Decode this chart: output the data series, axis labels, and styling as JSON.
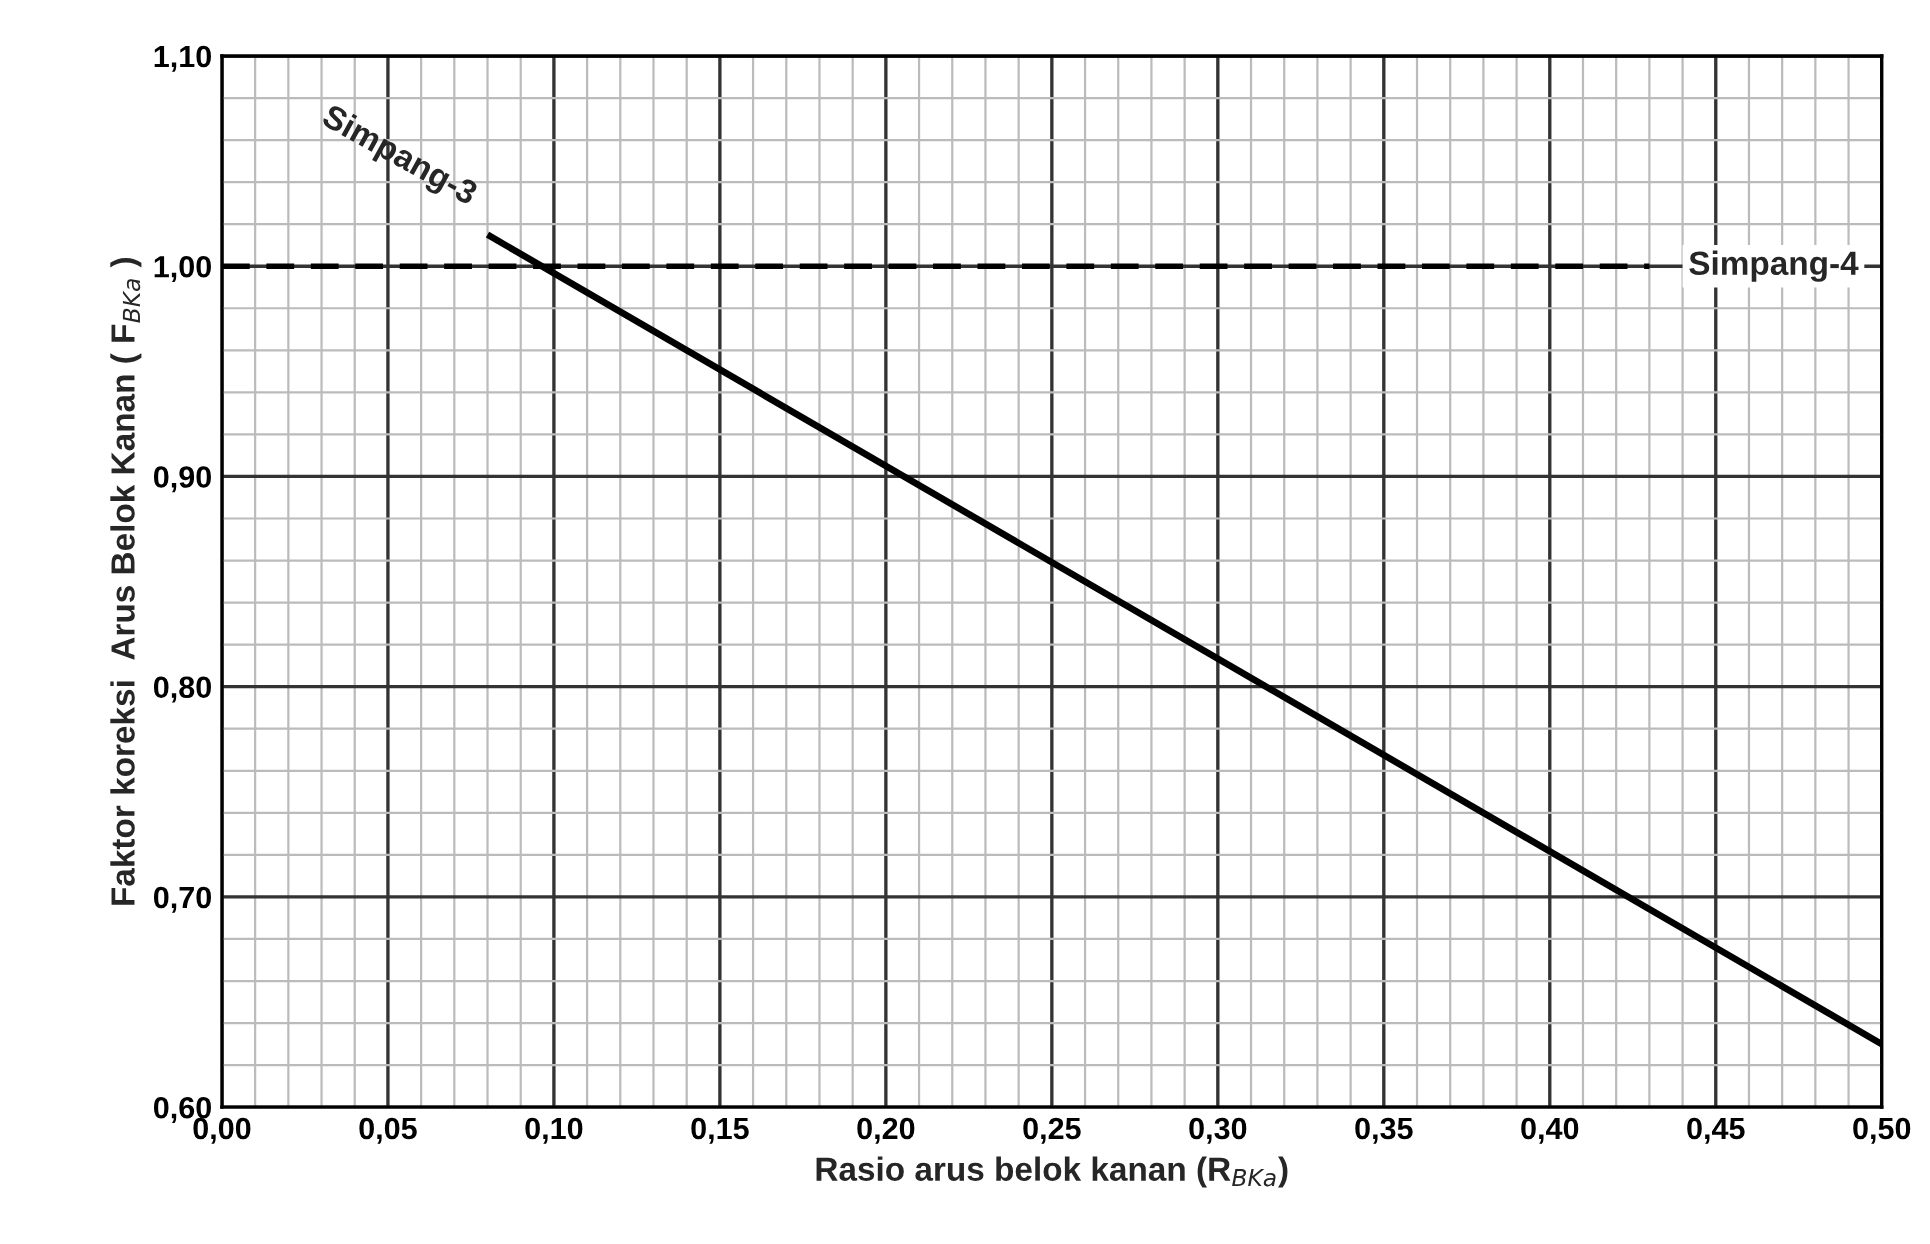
{
  "chart_data": {
    "type": "line",
    "xlabel": "Rasio arus belok kanan (R$_{BKa}$)",
    "ylabel": "Faktor koreksi  Arus Belok Kanan ( F$_{BKa}$ )",
    "series": [
      {
        "name": "Simpang-3",
        "color": "#000000",
        "x": [
          0.08,
          0.5
        ],
        "values": [
          1.015,
          0.63
        ],
        "line_style": "solid"
      },
      {
        "name": "Simpang-4",
        "color": "#000000",
        "x": [
          0.0,
          0.43
        ],
        "values": [
          1.0,
          1.0
        ],
        "line_style": "dashed"
      }
    ],
    "xlim": [
      0,
      0.5
    ],
    "ylim": [
      0.6,
      1.1
    ],
    "xticks": [
      {
        "value": 0,
        "label": "0,00"
      },
      {
        "value": 0.01,
        "label": null
      },
      {
        "value": 0.02,
        "label": null
      },
      {
        "value": 0.03,
        "label": null
      },
      {
        "value": 0.04,
        "label": null
      },
      {
        "value": 0.05,
        "label": "0,05"
      },
      {
        "value": 0.06,
        "label": null
      },
      {
        "value": 0.07,
        "label": null
      },
      {
        "value": 0.08,
        "label": null
      },
      {
        "value": 0.09,
        "label": null
      },
      {
        "value": 0.1,
        "label": "0,10"
      },
      {
        "value": 0.11,
        "label": null
      },
      {
        "value": 0.12,
        "label": null
      },
      {
        "value": 0.13,
        "label": null
      },
      {
        "value": 0.14,
        "label": null
      },
      {
        "value": 0.15,
        "label": "0,15"
      },
      {
        "value": 0.16,
        "label": null
      },
      {
        "value": 0.17,
        "label": null
      },
      {
        "value": 0.18,
        "label": null
      },
      {
        "value": 0.19,
        "label": null
      },
      {
        "value": 0.2,
        "label": "0,20"
      },
      {
        "value": 0.21,
        "label": null
      },
      {
        "value": 0.22,
        "label": null
      },
      {
        "value": 0.23,
        "label": null
      },
      {
        "value": 0.24,
        "label": null
      },
      {
        "value": 0.25,
        "label": "0,25"
      },
      {
        "value": 0.26,
        "label": null
      },
      {
        "value": 0.27,
        "label": null
      },
      {
        "value": 0.28,
        "label": null
      },
      {
        "value": 0.29,
        "label": null
      },
      {
        "value": 0.3,
        "label": "0,30"
      },
      {
        "value": 0.31,
        "label": null
      },
      {
        "value": 0.32,
        "label": null
      },
      {
        "value": 0.33,
        "label": null
      },
      {
        "value": 0.34,
        "label": null
      },
      {
        "value": 0.35,
        "label": "0,35"
      },
      {
        "value": 0.36,
        "label": null
      },
      {
        "value": 0.37,
        "label": null
      },
      {
        "value": 0.38,
        "label": null
      },
      {
        "value": 0.39,
        "label": null
      },
      {
        "value": 0.4,
        "label": "0,40"
      },
      {
        "value": 0.41,
        "label": null
      },
      {
        "value": 0.42,
        "label": null
      },
      {
        "value": 0.43,
        "label": null
      },
      {
        "value": 0.44,
        "label": null
      },
      {
        "value": 0.45,
        "label": "0,45"
      },
      {
        "value": 0.46,
        "label": null
      },
      {
        "value": 0.47,
        "label": null
      },
      {
        "value": 0.48,
        "label": null
      },
      {
        "value": 0.49,
        "label": null
      },
      {
        "value": 0.5,
        "label": "0,50"
      }
    ],
    "yticks": [
      {
        "value": 0.6,
        "label": "0,60"
      },
      {
        "value": 0.62,
        "label": null
      },
      {
        "value": 0.64,
        "label": null
      },
      {
        "value": 0.66,
        "label": null
      },
      {
        "value": 0.68,
        "label": null
      },
      {
        "value": 0.7,
        "label": "0,70"
      },
      {
        "value": 0.72,
        "label": null
      },
      {
        "value": 0.74,
        "label": null
      },
      {
        "value": 0.76,
        "label": null
      },
      {
        "value": 0.78,
        "label": null
      },
      {
        "value": 0.8,
        "label": "0,80"
      },
      {
        "value": 0.82,
        "label": null
      },
      {
        "value": 0.84,
        "label": null
      },
      {
        "value": 0.86,
        "label": null
      },
      {
        "value": 0.88,
        "label": null
      },
      {
        "value": 0.9,
        "label": "0,90"
      },
      {
        "value": 0.92,
        "label": null
      },
      {
        "value": 0.94,
        "label": null
      },
      {
        "value": 0.96,
        "label": null
      },
      {
        "value": 0.98,
        "label": null
      },
      {
        "value": 1.0,
        "label": "1,00"
      },
      {
        "value": 1.02,
        "label": null
      },
      {
        "value": 1.04,
        "label": null
      },
      {
        "value": 1.06,
        "label": null
      },
      {
        "value": 1.08,
        "label": null
      },
      {
        "value": 1.1,
        "label": "1,10"
      }
    ],
    "grid": true,
    "legend": false,
    "marker": "none"
  }
}
